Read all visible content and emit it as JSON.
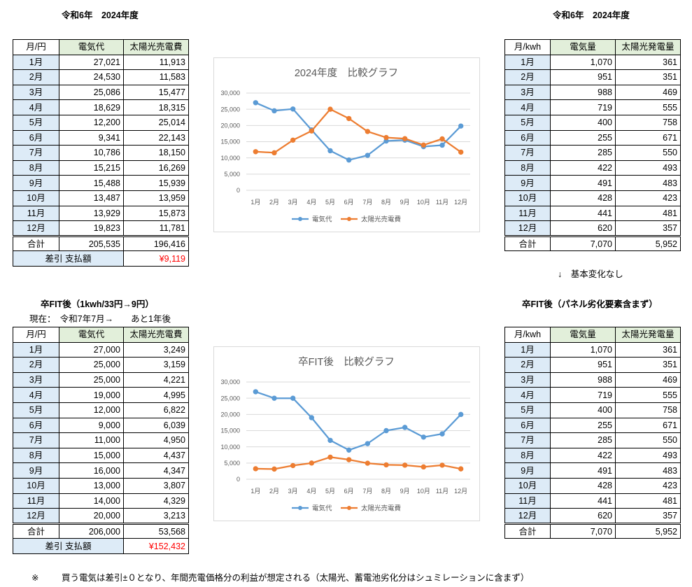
{
  "sheet": {
    "top_left_title": "令和6年　2024年度",
    "top_right_title": "令和6年　2024年度",
    "no_change_note": "↓　基本変化なし",
    "fit_left_title": "卒FIT後（1kwh/33円→9円）",
    "fit_left_subtitle": "現在：　令和7年7月→　　あと1年後",
    "fit_right_title": "卒FIT後（パネル劣化要素含まず）",
    "footnote_mark": "※",
    "footnote_text": "買う電気は差引±０となり、年間売電価格分の利益が想定される（太陽光、蓄電池劣化分はシュミレーションに含まず）"
  },
  "colors": {
    "header_fill": "#e2efda",
    "month_fill": "#ddebf7",
    "balance_text": "#ff0000",
    "electricity_cost_series": "#5b9bd5",
    "solar_series": "#ed7d31"
  },
  "cost_table_2024": {
    "headers": [
      "月/円",
      "電気代",
      "太陽光売電費"
    ],
    "rows": [
      [
        "1月",
        "27,021",
        "11,913"
      ],
      [
        "2月",
        "24,530",
        "11,583"
      ],
      [
        "3月",
        "25,086",
        "15,477"
      ],
      [
        "4月",
        "18,629",
        "18,315"
      ],
      [
        "5月",
        "12,200",
        "25,014"
      ],
      [
        "6月",
        "9,341",
        "22,143"
      ],
      [
        "7月",
        "10,786",
        "18,150"
      ],
      [
        "8月",
        "15,215",
        "16,269"
      ],
      [
        "9月",
        "15,488",
        "15,939"
      ],
      [
        "10月",
        "13,487",
        "13,959"
      ],
      [
        "11月",
        "13,929",
        "15,873"
      ],
      [
        "12月",
        "19,823",
        "11,781"
      ]
    ],
    "total": [
      "合計",
      "205,535",
      "196,416"
    ],
    "balance_label": "差引 支払額",
    "balance_value": "¥9,119"
  },
  "energy_table_2024": {
    "headers": [
      "月/kwh",
      "電気量",
      "太陽光発電量"
    ],
    "rows": [
      [
        "1月",
        "1,070",
        "361"
      ],
      [
        "2月",
        "951",
        "351"
      ],
      [
        "3月",
        "988",
        "469"
      ],
      [
        "4月",
        "719",
        "555"
      ],
      [
        "5月",
        "400",
        "758"
      ],
      [
        "6月",
        "255",
        "671"
      ],
      [
        "7月",
        "285",
        "550"
      ],
      [
        "8月",
        "422",
        "493"
      ],
      [
        "9月",
        "491",
        "483"
      ],
      [
        "10月",
        "428",
        "423"
      ],
      [
        "11月",
        "441",
        "481"
      ],
      [
        "12月",
        "620",
        "357"
      ]
    ],
    "total": [
      "合計",
      "7,070",
      "5,952"
    ]
  },
  "cost_table_fit": {
    "headers": [
      "月/円",
      "電気代",
      "太陽光売電費"
    ],
    "rows": [
      [
        "1月",
        "27,000",
        "3,249"
      ],
      [
        "2月",
        "25,000",
        "3,159"
      ],
      [
        "3月",
        "25,000",
        "4,221"
      ],
      [
        "4月",
        "19,000",
        "4,995"
      ],
      [
        "5月",
        "12,000",
        "6,822"
      ],
      [
        "6月",
        "9,000",
        "6,039"
      ],
      [
        "7月",
        "11,000",
        "4,950"
      ],
      [
        "8月",
        "15,000",
        "4,437"
      ],
      [
        "9月",
        "16,000",
        "4,347"
      ],
      [
        "10月",
        "13,000",
        "3,807"
      ],
      [
        "11月",
        "14,000",
        "4,329"
      ],
      [
        "12月",
        "20,000",
        "3,213"
      ]
    ],
    "total": [
      "合計",
      "206,000",
      "53,568"
    ],
    "balance_label": "差引 支払額",
    "balance_value": "¥152,432"
  },
  "energy_table_fit": {
    "headers": [
      "月/kwh",
      "電気量",
      "太陽光発電量"
    ],
    "rows": [
      [
        "1月",
        "1,070",
        "361"
      ],
      [
        "2月",
        "951",
        "351"
      ],
      [
        "3月",
        "988",
        "469"
      ],
      [
        "4月",
        "719",
        "555"
      ],
      [
        "5月",
        "400",
        "758"
      ],
      [
        "6月",
        "255",
        "671"
      ],
      [
        "7月",
        "285",
        "550"
      ],
      [
        "8月",
        "422",
        "493"
      ],
      [
        "9月",
        "491",
        "483"
      ],
      [
        "10月",
        "428",
        "423"
      ],
      [
        "11月",
        "441",
        "481"
      ],
      [
        "12月",
        "620",
        "357"
      ]
    ],
    "total": [
      "合計",
      "7,070",
      "5,952"
    ]
  },
  "chart_data": [
    {
      "type": "line",
      "title": "2024年度　比較グラフ",
      "categories": [
        "1月",
        "2月",
        "3月",
        "4月",
        "5月",
        "6月",
        "7月",
        "8月",
        "9月",
        "10月",
        "11月",
        "12月"
      ],
      "series": [
        {
          "name": "電気代",
          "color": "#5b9bd5",
          "values": [
            27021,
            24530,
            25086,
            18629,
            12200,
            9341,
            10786,
            15215,
            15488,
            13487,
            13929,
            19823
          ]
        },
        {
          "name": "太陽光売電費",
          "color": "#ed7d31",
          "values": [
            11913,
            11583,
            15477,
            18315,
            25014,
            22143,
            18150,
            16269,
            15939,
            13959,
            15873,
            11781
          ]
        }
      ],
      "ylim": [
        0,
        30000
      ],
      "yticks": [
        0,
        5000,
        10000,
        15000,
        20000,
        25000,
        30000
      ],
      "ytick_labels": [
        "0",
        "5,000",
        "10,000",
        "15,000",
        "20,000",
        "25,000",
        "30,000"
      ],
      "grid": true,
      "legend": "bottom"
    },
    {
      "type": "line",
      "title": "卒FIT後　比較グラフ",
      "categories": [
        "1月",
        "2月",
        "3月",
        "4月",
        "5月",
        "6月",
        "7月",
        "8月",
        "9月",
        "10月",
        "11月",
        "12月"
      ],
      "series": [
        {
          "name": "電気代",
          "color": "#5b9bd5",
          "values": [
            27000,
            25000,
            25000,
            19000,
            12000,
            9000,
            11000,
            15000,
            16000,
            13000,
            14000,
            20000
          ]
        },
        {
          "name": "太陽光売電費",
          "color": "#ed7d31",
          "values": [
            3249,
            3159,
            4221,
            4995,
            6822,
            6039,
            4950,
            4437,
            4347,
            3807,
            4329,
            3213
          ]
        }
      ],
      "ylim": [
        0,
        30000
      ],
      "yticks": [
        0,
        5000,
        10000,
        15000,
        20000,
        25000,
        30000
      ],
      "ytick_labels": [
        "0",
        "5,000",
        "10,000",
        "15,000",
        "20,000",
        "25,000",
        "30,000"
      ],
      "grid": true,
      "legend": "bottom"
    }
  ]
}
